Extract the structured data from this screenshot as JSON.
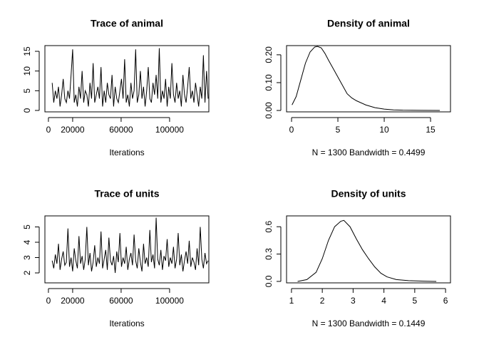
{
  "chart_data": [
    {
      "type": "line",
      "title": "Trace of animal",
      "xlabel": "Iterations",
      "color": "#000000",
      "x": [
        3100,
        4400,
        5700,
        7000,
        8300,
        9600,
        10900,
        12200,
        13500,
        14800,
        16100,
        17400,
        18700,
        20000,
        21300,
        22600,
        23900,
        25200,
        26500,
        27800,
        29100,
        30400,
        31700,
        33000,
        34300,
        35600,
        36900,
        38200,
        39500,
        40800,
        42100,
        43400,
        44700,
        46000,
        47300,
        48600,
        49900,
        51200,
        52500,
        53800,
        55100,
        56400,
        57700,
        59000,
        60300,
        61600,
        62900,
        64200,
        65500,
        66800,
        68100,
        69400,
        70700,
        72000,
        73300,
        74600,
        75900,
        77200,
        78500,
        79800,
        81100,
        82400,
        83700,
        85000,
        86300,
        87600,
        88900,
        90200,
        91500,
        92800,
        94100,
        95400,
        96700,
        98000,
        99300,
        100600,
        101900,
        103200,
        104500,
        105800,
        107100,
        108400,
        109700,
        111000,
        112300,
        113600,
        114900,
        116200,
        117500,
        118800,
        120100,
        121400,
        122700,
        124000,
        125300,
        126600,
        127900,
        129200,
        130500,
        131800
      ],
      "values": [
        7,
        2,
        5,
        3,
        6,
        1,
        4,
        8,
        3,
        2,
        5,
        3,
        9,
        15.5,
        2,
        4,
        1,
        6,
        3,
        10,
        2,
        5,
        4,
        1,
        7,
        3,
        12,
        2,
        4,
        6,
        3,
        11,
        1,
        5,
        2,
        7,
        4,
        3,
        9,
        1,
        6,
        3,
        2,
        5,
        8,
        3,
        13,
        2,
        4,
        1,
        7,
        3,
        5,
        15.5,
        2,
        4,
        10,
        3,
        6,
        1,
        5,
        11,
        3,
        2,
        7,
        4,
        9,
        3,
        15.8,
        2,
        5,
        3,
        8,
        1,
        6,
        3,
        12,
        4,
        2,
        7,
        3,
        5,
        1,
        9,
        4,
        2,
        6,
        11,
        3,
        5,
        2,
        7,
        4,
        1,
        6,
        3,
        14,
        2,
        10,
        3
      ],
      "xlim": [
        -2900,
        132400
      ],
      "ylim": [
        -0.36,
        16.45
      ],
      "xticks": [
        0,
        20000,
        60000,
        100000
      ],
      "yticks": [
        0,
        5,
        10,
        15
      ]
    },
    {
      "type": "line",
      "title": "Density of animal",
      "xlabel": "N = 1300   Bandwidth = 0.4499",
      "color": "#000000",
      "x": [
        0.05,
        0.5,
        1,
        1.5,
        2,
        2.5,
        2.8,
        3.2,
        3.6,
        4,
        4.5,
        5,
        5.5,
        6,
        6.5,
        7,
        8,
        9,
        10,
        11,
        12,
        14,
        16
      ],
      "values": [
        0.02,
        0.05,
        0.11,
        0.17,
        0.21,
        0.228,
        0.23,
        0.225,
        0.205,
        0.18,
        0.15,
        0.12,
        0.09,
        0.06,
        0.045,
        0.035,
        0.02,
        0.01,
        0.005,
        0.002,
        0.001,
        0.0005,
        0
      ],
      "xlim": [
        -0.54,
        17.15
      ],
      "ylim": [
        -0.005,
        0.233
      ],
      "xticks": [
        0,
        5,
        10,
        15
      ],
      "yticks": [
        {
          "value": 0,
          "label": "0.00"
        },
        {
          "value": 0.1,
          "label": "0.10"
        },
        {
          "value": 0.2,
          "label": "0.20"
        }
      ]
    },
    {
      "type": "line",
      "title": "Trace of units",
      "xlabel": "Iterations",
      "color": "#000000",
      "x": [
        3100,
        4400,
        5700,
        7000,
        8300,
        9600,
        10900,
        12200,
        13500,
        14800,
        16100,
        17400,
        18700,
        20000,
        21300,
        22600,
        23900,
        25200,
        26500,
        27800,
        29100,
        30400,
        31700,
        33000,
        34300,
        35600,
        36900,
        38200,
        39500,
        40800,
        42100,
        43400,
        44700,
        46000,
        47300,
        48600,
        49900,
        51200,
        52500,
        53800,
        55100,
        56400,
        57700,
        59000,
        60300,
        61600,
        62900,
        64200,
        65500,
        66800,
        68100,
        69400,
        70700,
        72000,
        73300,
        74600,
        75900,
        77200,
        78500,
        79800,
        81100,
        82400,
        83700,
        85000,
        86300,
        87600,
        88900,
        90200,
        91500,
        92800,
        94100,
        95400,
        96700,
        98000,
        99300,
        100600,
        101900,
        103200,
        104500,
        105800,
        107100,
        108400,
        109700,
        111000,
        112300,
        113600,
        114900,
        116200,
        117500,
        118800,
        120100,
        121400,
        122700,
        124000,
        125300,
        126600,
        127900,
        129200,
        130500,
        131800
      ],
      "values": [
        2.8,
        2.3,
        3.2,
        2.6,
        3.9,
        2.2,
        2.9,
        3.4,
        2.5,
        2.7,
        4.9,
        2.4,
        3.0,
        2.1,
        3.6,
        2.8,
        2.3,
        4.4,
        2.6,
        3.1,
        2.2,
        2.9,
        5.0,
        2.5,
        3.3,
        2.1,
        2.7,
        3.8,
        2.4,
        3.0,
        2.6,
        4.7,
        2.3,
        2.9,
        3.5,
        2.2,
        4.3,
        2.8,
        2.5,
        3.1,
        2.0,
        3.4,
        2.7,
        4.6,
        2.4,
        3.0,
        2.6,
        3.7,
        2.2,
        2.9,
        3.3,
        2.5,
        4.5,
        2.8,
        2.3,
        3.6,
        2.7,
        2.1,
        3.9,
        2.6,
        3.0,
        2.4,
        4.8,
        2.7,
        3.2,
        2.3,
        5.6,
        2.9,
        2.5,
        3.5,
        2.2,
        3.1,
        2.8,
        4.2,
        2.4,
        3.0,
        2.6,
        3.7,
        2.3,
        2.9,
        4.6,
        2.5,
        3.2,
        2.1,
        2.8,
        3.4,
        2.6,
        4.1,
        2.4,
        3.0,
        2.7,
        2.2,
        3.6,
        2.5,
        5.0,
        2.9,
        2.3,
        3.3,
        2.6,
        2.8
      ],
      "xlim": [
        -2900,
        132400
      ],
      "ylim": [
        1.35,
        5.72
      ],
      "xticks": [
        0,
        20000,
        60000,
        100000
      ],
      "yticks": [
        2,
        3,
        4,
        5
      ]
    },
    {
      "type": "line",
      "title": "Density of units",
      "xlabel": "N = 1300   Bandwidth = 0.1449",
      "color": "#000000",
      "x": [
        1.2,
        1.5,
        1.8,
        2.0,
        2.2,
        2.4,
        2.6,
        2.7,
        2.9,
        3.1,
        3.3,
        3.5,
        3.7,
        3.9,
        4.1,
        4.4,
        4.8,
        5.3,
        5.7
      ],
      "values": [
        0,
        0.02,
        0.1,
        0.25,
        0.45,
        0.6,
        0.66,
        0.67,
        0.6,
        0.47,
        0.35,
        0.25,
        0.16,
        0.09,
        0.05,
        0.02,
        0.008,
        0.003,
        0
      ],
      "xlim": [
        0.84,
        6.16
      ],
      "ylim": [
        -0.016,
        0.719
      ],
      "xticks": [
        1,
        2,
        3,
        4,
        5,
        6
      ],
      "yticks": [
        {
          "value": 0,
          "label": "0.0"
        },
        {
          "value": 0.3,
          "label": "0.3"
        },
        {
          "value": 0.6,
          "label": "0.6"
        }
      ]
    }
  ]
}
